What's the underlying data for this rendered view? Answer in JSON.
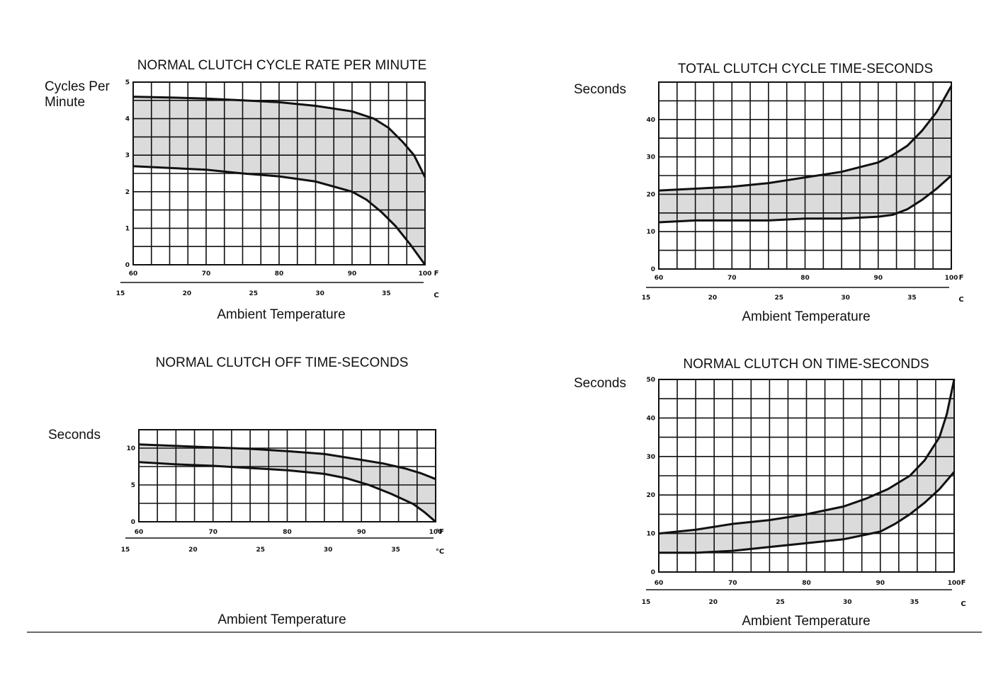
{
  "charts": {
    "colors": {
      "ink": "#111111",
      "band": "#999999",
      "background": "#ffffff"
    }
  },
  "chart_data": [
    {
      "id": "cycle-rate",
      "type": "line",
      "title": "NORMAL CLUTCH CYCLE RATE PER MINUTE",
      "ylabel": [
        "Cycles Per",
        "Minute"
      ],
      "xlabel": "Ambient Temperature",
      "x_unit": "F",
      "x2_unit": "C",
      "ylim": [
        0,
        5
      ],
      "xlim": [
        60,
        100
      ],
      "x_ticks": [
        "60",
        "70",
        "80",
        "90",
        "100"
      ],
      "x2_ticks": [
        "15",
        "20",
        "25",
        "30",
        "35"
      ],
      "y_ticks": [
        "0",
        "1",
        "2",
        "3",
        "4",
        "5"
      ],
      "series": [
        {
          "x": [
            60,
            65,
            70,
            75,
            80,
            85,
            90,
            93,
            95,
            97,
            98.5,
            100
          ],
          "y": [
            4.6,
            4.58,
            4.55,
            4.5,
            4.45,
            4.35,
            4.2,
            4.0,
            3.75,
            3.35,
            3.0,
            2.4
          ]
        },
        {
          "x": [
            60,
            65,
            70,
            75,
            80,
            85,
            90,
            92,
            94,
            96,
            98,
            100
          ],
          "y": [
            2.7,
            2.65,
            2.6,
            2.5,
            2.42,
            2.28,
            2.0,
            1.78,
            1.45,
            1.05,
            0.55,
            0.0
          ]
        }
      ]
    },
    {
      "id": "total-cycle",
      "type": "line",
      "title": "TOTAL CLUTCH CYCLE TIME-SECONDS",
      "ylabel": [
        "Seconds"
      ],
      "xlabel": "Ambient Temperature",
      "x_unit": "F",
      "x2_unit": "C",
      "ylim": [
        0,
        50
      ],
      "xlim": [
        60,
        100
      ],
      "x_ticks": [
        "60",
        "70",
        "80",
        "90",
        "100"
      ],
      "x2_ticks": [
        "15",
        "20",
        "25",
        "30",
        "35"
      ],
      "y_ticks": [
        "0",
        "10",
        "20",
        "30",
        "40"
      ],
      "series": [
        {
          "x": [
            60,
            65,
            70,
            75,
            80,
            85,
            90,
            92,
            94,
            96,
            98,
            100
          ],
          "y": [
            21,
            21.5,
            22,
            23,
            24.5,
            26,
            28.5,
            30.5,
            33,
            37,
            42,
            49
          ]
        },
        {
          "x": [
            60,
            65,
            70,
            75,
            80,
            85,
            90,
            92,
            94,
            96,
            98,
            100
          ],
          "y": [
            12.5,
            13,
            13,
            13,
            13.5,
            13.5,
            14,
            14.5,
            16,
            18.5,
            21.5,
            25
          ]
        }
      ]
    },
    {
      "id": "off-time",
      "type": "line",
      "title": "NORMAL CLUTCH OFF TIME-SECONDS",
      "ylabel": [
        "Seconds"
      ],
      "xlabel": "Ambient Temperature",
      "x_unit": "°F",
      "x2_unit": "°C",
      "ylim": [
        0,
        12.5
      ],
      "xlim": [
        60,
        100
      ],
      "x_ticks": [
        "60",
        "70",
        "80",
        "90",
        "100"
      ],
      "x2_ticks": [
        "15",
        "20",
        "25",
        "30",
        "35"
      ],
      "y_ticks": [
        "0",
        "5",
        "10"
      ],
      "series": [
        {
          "x": [
            60,
            65,
            70,
            75,
            80,
            85,
            90,
            93,
            96,
            98,
            100
          ],
          "y": [
            10.5,
            10.3,
            10.1,
            9.9,
            9.6,
            9.2,
            8.4,
            7.9,
            7.2,
            6.6,
            5.8
          ]
        },
        {
          "x": [
            60,
            65,
            70,
            75,
            80,
            85,
            88,
            91,
            94,
            97,
            98.5,
            100
          ],
          "y": [
            8.1,
            7.8,
            7.6,
            7.3,
            7.0,
            6.5,
            5.9,
            5.0,
            3.8,
            2.4,
            1.3,
            0.0
          ]
        }
      ]
    },
    {
      "id": "on-time",
      "type": "line",
      "title": "NORMAL CLUTCH ON TIME-SECONDS",
      "ylabel": [
        "Seconds"
      ],
      "xlabel": "Ambient Temperature",
      "x_unit": "F",
      "x2_unit": "C",
      "ylim": [
        0,
        50
      ],
      "xlim": [
        60,
        100
      ],
      "x_ticks": [
        "60",
        "70",
        "80",
        "90",
        "100"
      ],
      "x2_ticks": [
        "15",
        "20",
        "25",
        "30",
        "35"
      ],
      "y_ticks": [
        "0",
        "10",
        "20",
        "30",
        "40",
        "50"
      ],
      "series": [
        {
          "x": [
            60,
            65,
            70,
            75,
            80,
            85,
            88,
            91,
            94,
            96,
            98,
            99,
            100
          ],
          "y": [
            10,
            11,
            12.5,
            13.5,
            15,
            17,
            19,
            21.5,
            25,
            29,
            35,
            41,
            50
          ]
        },
        {
          "x": [
            60,
            65,
            70,
            75,
            80,
            85,
            90,
            92,
            94,
            96,
            98,
            100
          ],
          "y": [
            5,
            5,
            5.5,
            6.5,
            7.5,
            8.5,
            10.5,
            12.5,
            15,
            18,
            21.5,
            26
          ]
        }
      ]
    }
  ]
}
